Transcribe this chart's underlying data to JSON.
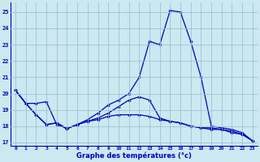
{
  "xlabel": "Graphe des températures (°c)",
  "background_color": "#cce8f0",
  "line_color": "#0000bb",
  "grid_color": "#99c4d8",
  "xlim": [
    -0.5,
    23.5
  ],
  "ylim": [
    16.8,
    25.6
  ],
  "yticks": [
    17,
    18,
    19,
    20,
    21,
    22,
    23,
    24,
    25
  ],
  "xticks": [
    0,
    1,
    2,
    3,
    4,
    5,
    6,
    7,
    8,
    9,
    10,
    11,
    12,
    13,
    14,
    15,
    16,
    17,
    18,
    19,
    20,
    21,
    22,
    23
  ],
  "line1_x": [
    0,
    1,
    2,
    3,
    4,
    5,
    6,
    7,
    8,
    9,
    10,
    11,
    12,
    13,
    14,
    15,
    16,
    17,
    18,
    19,
    20,
    21,
    22,
    23
  ],
  "line1_y": [
    20.2,
    19.4,
    18.7,
    18.1,
    18.2,
    17.85,
    18.1,
    18.4,
    18.8,
    19.3,
    19.6,
    20.0,
    21.0,
    23.2,
    23.0,
    25.1,
    25.0,
    23.2,
    21.0,
    18.0,
    17.9,
    17.8,
    17.6,
    17.1
  ],
  "line2_x": [
    0,
    1,
    2,
    3,
    4,
    5,
    6,
    7,
    8,
    9,
    10,
    11,
    12,
    13,
    14,
    15,
    16,
    17,
    18,
    19,
    20,
    21,
    22,
    23
  ],
  "line2_y": [
    20.2,
    19.4,
    19.4,
    19.5,
    18.1,
    17.85,
    18.1,
    18.3,
    18.5,
    18.8,
    19.2,
    19.6,
    19.8,
    19.6,
    18.5,
    18.3,
    18.2,
    18.0,
    17.9,
    17.9,
    17.8,
    17.7,
    17.5,
    17.1
  ],
  "line3_x": [
    0,
    1,
    2,
    3,
    4,
    5,
    6,
    7,
    8,
    9,
    10,
    11,
    12,
    13,
    14,
    15,
    16,
    17,
    18,
    19,
    20,
    21,
    22,
    23
  ],
  "line3_y": [
    20.2,
    19.4,
    18.7,
    18.1,
    18.2,
    17.85,
    18.1,
    18.3,
    18.4,
    18.6,
    18.7,
    18.7,
    18.7,
    18.6,
    18.4,
    18.3,
    18.2,
    18.0,
    17.9,
    17.8,
    17.8,
    17.6,
    17.5,
    17.1
  ]
}
